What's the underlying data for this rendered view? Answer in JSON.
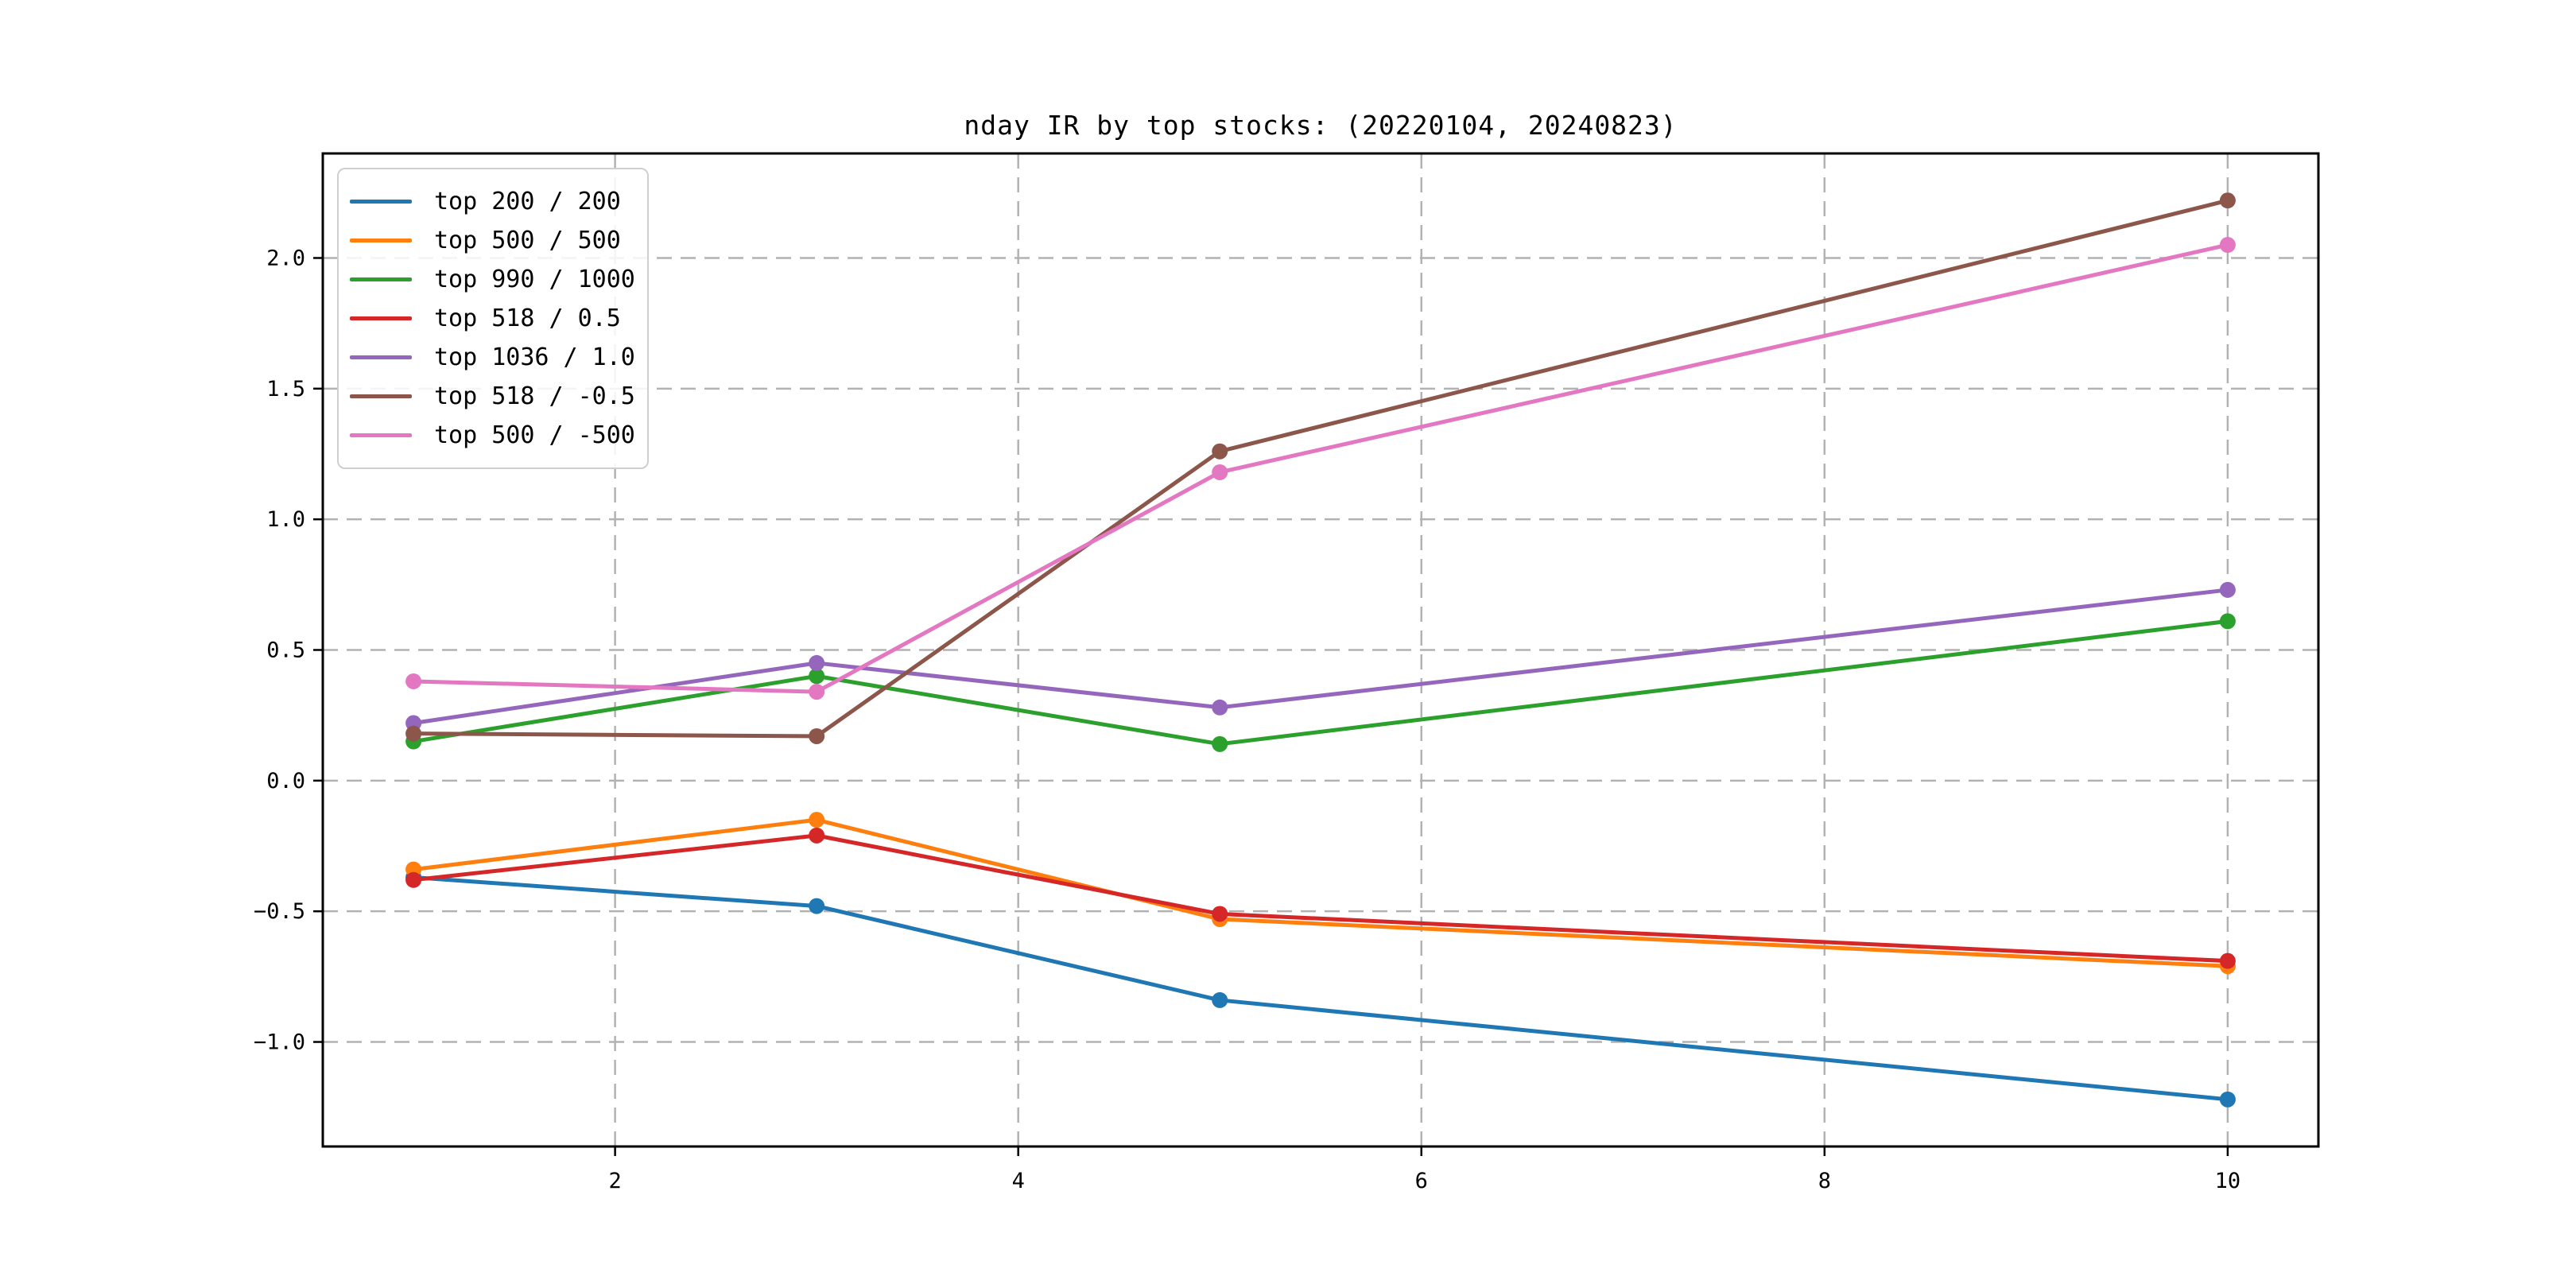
{
  "chart_data": {
    "type": "line",
    "title": "nday IR by top stocks: (20220104, 20240823)",
    "xlabel": "",
    "ylabel": "",
    "x": [
      1,
      3,
      5,
      10
    ],
    "series": [
      {
        "name": "top 200 / 200",
        "color": "#1f77b4",
        "values": [
          -0.37,
          -0.48,
          -0.84,
          -1.22
        ]
      },
      {
        "name": "top 500 / 500",
        "color": "#ff7f0e",
        "values": [
          -0.34,
          -0.15,
          -0.53,
          -0.71
        ]
      },
      {
        "name": "top 990 / 1000",
        "color": "#2ca02c",
        "values": [
          0.15,
          0.4,
          0.14,
          0.61
        ]
      },
      {
        "name": "top 518 / 0.5",
        "color": "#d62728",
        "values": [
          -0.38,
          -0.21,
          -0.51,
          -0.69
        ]
      },
      {
        "name": "top 1036 / 1.0",
        "color": "#9467bd",
        "values": [
          0.22,
          0.45,
          0.28,
          0.73
        ]
      },
      {
        "name": "top 518 / -0.5",
        "color": "#8c564b",
        "values": [
          0.18,
          0.17,
          1.26,
          2.22
        ]
      },
      {
        "name": "top 500 / -500",
        "color": "#e377c2",
        "values": [
          0.38,
          0.34,
          1.18,
          2.05
        ]
      }
    ],
    "xlim": [
      0.55,
      10.45
    ],
    "ylim": [
      -1.4,
      2.4
    ],
    "xticks": [
      2,
      4,
      6,
      8,
      10
    ],
    "yticks": [
      -1.0,
      -0.5,
      0.0,
      0.5,
      1.0,
      1.5,
      2.0
    ],
    "xticklabels": [
      "2",
      "4",
      "6",
      "8",
      "10"
    ],
    "yticklabels": [
      "−1.0",
      "−0.5",
      "0.0",
      "0.5",
      "1.0",
      "1.5",
      "2.0"
    ],
    "grid": true,
    "grid_style": "dashed",
    "legend_position": "upper-left",
    "marker": "circle",
    "style": {
      "background": "#ffffff",
      "axis_color": "#000000",
      "grid_color": "#b2b2b2",
      "legend_border_color": "#cfcfcf",
      "text_color": "#000000"
    }
  }
}
